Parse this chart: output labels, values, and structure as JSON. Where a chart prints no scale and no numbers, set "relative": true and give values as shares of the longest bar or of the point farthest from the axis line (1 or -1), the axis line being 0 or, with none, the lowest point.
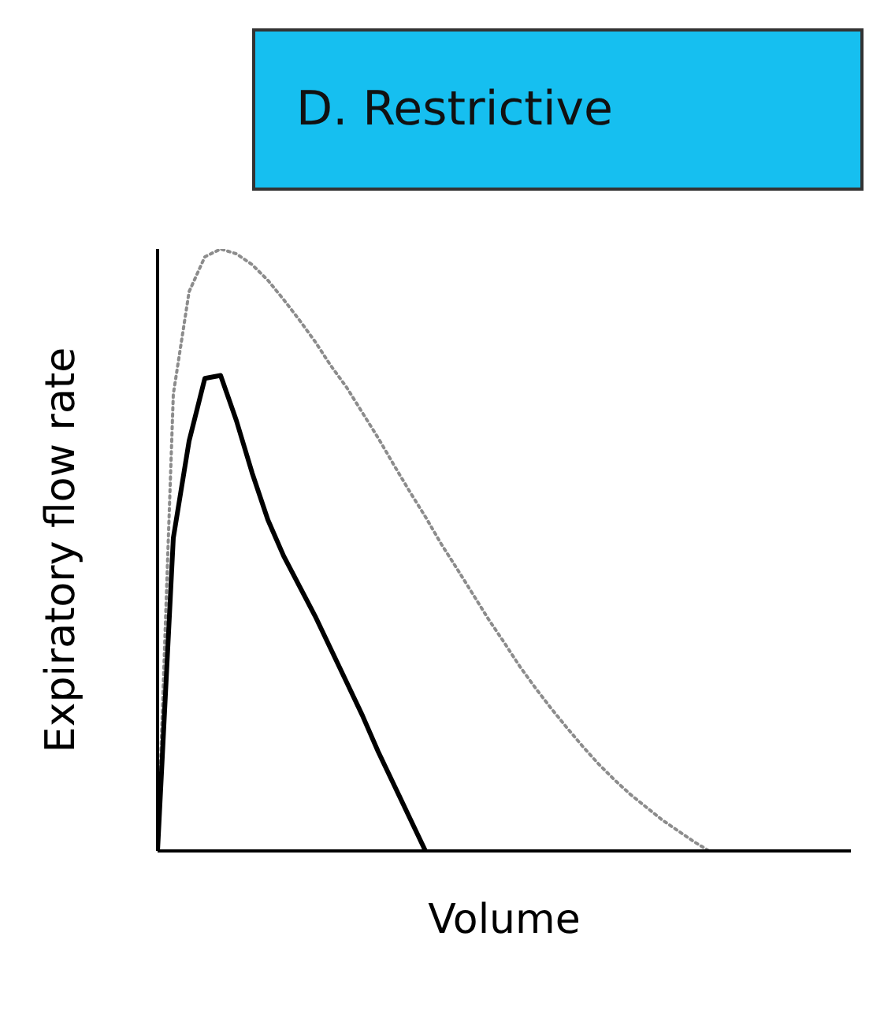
{
  "chart_data": {
    "type": "line",
    "title": "D. Restrictive",
    "xlabel": "Volume",
    "ylabel": "Expiratory flow rate",
    "relative": true,
    "legend": false,
    "marker": "none",
    "categories": [
      null,
      null,
      null,
      null,
      null,
      null,
      null,
      null,
      null,
      null,
      null,
      null,
      null,
      null,
      null,
      null,
      null,
      null,
      null,
      null,
      null,
      null,
      null,
      null,
      null,
      null,
      null,
      null,
      null,
      null,
      null,
      null,
      null,
      null,
      null,
      null,
      null,
      null,
      null,
      null,
      null,
      null,
      null,
      null,
      null
    ],
    "series": [
      {
        "color": "#8c8c8c",
        "line_style": "dotted",
        "values": [
          0,
          0.759,
          0.929,
          0.987,
          1,
          0.992,
          0.974,
          0.948,
          0.916,
          0.882,
          0.846,
          0.806,
          0.77,
          0.728,
          0.686,
          0.641,
          0.597,
          0.555,
          0.51,
          0.469,
          0.427,
          0.385,
          0.346,
          0.306,
          0.27,
          0.236,
          0.204,
          0.173,
          0.144,
          0.118,
          0.094,
          0.073,
          0.052,
          0.034,
          0.016,
          0,
          null,
          null,
          null,
          null,
          null,
          null,
          null,
          null,
          null
        ]
      },
      {
        "color": "#000000",
        "line_style": "solid",
        "values": [
          0,
          0.52,
          0.681,
          0.785,
          0.79,
          0.715,
          0.628,
          0.55,
          0.49,
          0.44,
          0.39,
          0.335,
          0.28,
          0.225,
          0.165,
          0.11,
          0.055,
          0,
          null,
          null,
          null,
          null,
          null,
          null,
          null,
          null,
          null,
          null,
          null,
          null,
          null,
          null,
          null,
          null,
          null,
          null,
          null,
          null,
          null,
          null,
          null,
          null,
          null,
          null,
          null
        ]
      }
    ]
  }
}
